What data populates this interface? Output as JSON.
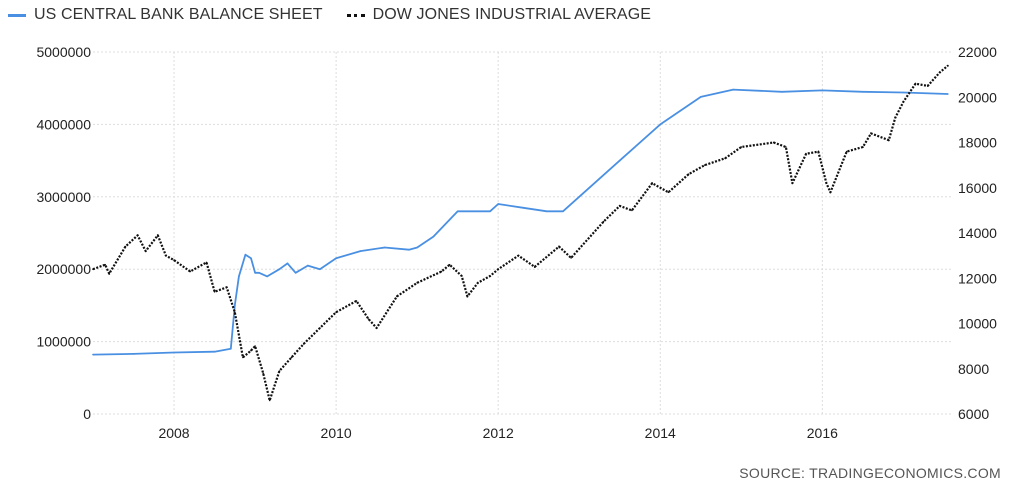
{
  "chart_data": {
    "type": "line",
    "title": "",
    "legend_position": "top-left",
    "grid": true,
    "series": [
      {
        "name": "US CENTRAL BANK BALANCE SHEET",
        "axis": "left",
        "color": "#4a90e2",
        "style": "solid",
        "points": [
          [
            2007.0,
            820000
          ],
          [
            2007.5,
            830000
          ],
          [
            2008.0,
            850000
          ],
          [
            2008.5,
            860000
          ],
          [
            2008.7,
            900000
          ],
          [
            2008.75,
            1500000
          ],
          [
            2008.8,
            1900000
          ],
          [
            2008.88,
            2200000
          ],
          [
            2008.95,
            2150000
          ],
          [
            2009.0,
            1950000
          ],
          [
            2009.05,
            1950000
          ],
          [
            2009.15,
            1900000
          ],
          [
            2009.3,
            2000000
          ],
          [
            2009.4,
            2080000
          ],
          [
            2009.5,
            1950000
          ],
          [
            2009.65,
            2050000
          ],
          [
            2009.8,
            2000000
          ],
          [
            2010.0,
            2150000
          ],
          [
            2010.3,
            2250000
          ],
          [
            2010.6,
            2300000
          ],
          [
            2010.9,
            2270000
          ],
          [
            2011.0,
            2300000
          ],
          [
            2011.2,
            2450000
          ],
          [
            2011.5,
            2800000
          ],
          [
            2011.9,
            2800000
          ],
          [
            2012.0,
            2900000
          ],
          [
            2012.3,
            2850000
          ],
          [
            2012.6,
            2800000
          ],
          [
            2012.8,
            2800000
          ],
          [
            2013.0,
            3000000
          ],
          [
            2013.5,
            3500000
          ],
          [
            2014.0,
            4000000
          ],
          [
            2014.5,
            4380000
          ],
          [
            2014.9,
            4480000
          ],
          [
            2015.5,
            4450000
          ],
          [
            2016.0,
            4470000
          ],
          [
            2016.5,
            4450000
          ],
          [
            2017.0,
            4440000
          ],
          [
            2017.55,
            4420000
          ]
        ]
      },
      {
        "name": "DOW JONES INDUSTRIAL AVERAGE",
        "axis": "right",
        "color": "#111111",
        "style": "dotted",
        "points": [
          [
            2007.0,
            12400
          ],
          [
            2007.15,
            12600
          ],
          [
            2007.2,
            12200
          ],
          [
            2007.4,
            13400
          ],
          [
            2007.55,
            13900
          ],
          [
            2007.65,
            13200
          ],
          [
            2007.8,
            13900
          ],
          [
            2007.9,
            13000
          ],
          [
            2008.0,
            12800
          ],
          [
            2008.2,
            12300
          ],
          [
            2008.4,
            12700
          ],
          [
            2008.5,
            11400
          ],
          [
            2008.65,
            11600
          ],
          [
            2008.75,
            10500
          ],
          [
            2008.85,
            8500
          ],
          [
            2008.95,
            8800
          ],
          [
            2009.0,
            9000
          ],
          [
            2009.1,
            7800
          ],
          [
            2009.18,
            6600
          ],
          [
            2009.3,
            7900
          ],
          [
            2009.45,
            8500
          ],
          [
            2009.6,
            9100
          ],
          [
            2009.8,
            9800
          ],
          [
            2010.0,
            10500
          ],
          [
            2010.25,
            11000
          ],
          [
            2010.4,
            10200
          ],
          [
            2010.5,
            9800
          ],
          [
            2010.75,
            11200
          ],
          [
            2011.0,
            11800
          ],
          [
            2011.3,
            12300
          ],
          [
            2011.4,
            12600
          ],
          [
            2011.55,
            12100
          ],
          [
            2011.62,
            11200
          ],
          [
            2011.75,
            11800
          ],
          [
            2011.9,
            12100
          ],
          [
            2012.0,
            12400
          ],
          [
            2012.25,
            13000
          ],
          [
            2012.45,
            12500
          ],
          [
            2012.75,
            13400
          ],
          [
            2012.9,
            12900
          ],
          [
            2013.0,
            13300
          ],
          [
            2013.3,
            14500
          ],
          [
            2013.5,
            15200
          ],
          [
            2013.65,
            15000
          ],
          [
            2013.9,
            16200
          ],
          [
            2014.1,
            15800
          ],
          [
            2014.35,
            16600
          ],
          [
            2014.55,
            17000
          ],
          [
            2014.8,
            17300
          ],
          [
            2015.0,
            17800
          ],
          [
            2015.4,
            18000
          ],
          [
            2015.55,
            17800
          ],
          [
            2015.63,
            16200
          ],
          [
            2015.8,
            17500
          ],
          [
            2015.95,
            17600
          ],
          [
            2016.05,
            16200
          ],
          [
            2016.1,
            15800
          ],
          [
            2016.3,
            17600
          ],
          [
            2016.5,
            17800
          ],
          [
            2016.6,
            18400
          ],
          [
            2016.82,
            18100
          ],
          [
            2016.9,
            19100
          ],
          [
            2017.0,
            19800
          ],
          [
            2017.15,
            20600
          ],
          [
            2017.3,
            20500
          ],
          [
            2017.45,
            21100
          ],
          [
            2017.55,
            21400
          ]
        ]
      }
    ],
    "x_ticks": [
      "2008",
      "2010",
      "2012",
      "2014",
      "2016"
    ],
    "x_tick_values": [
      2008,
      2010,
      2012,
      2014,
      2016
    ],
    "xlim": [
      2007.0,
      2017.6
    ],
    "ylim_left": [
      0,
      5000000
    ],
    "y_left_ticks": [
      "0",
      "1000000",
      "2000000",
      "3000000",
      "4000000",
      "5000000"
    ],
    "y_left_tick_values": [
      0,
      1000000,
      2000000,
      3000000,
      4000000,
      5000000
    ],
    "ylim_right": [
      6000,
      22000
    ],
    "y_right_ticks": [
      "6000",
      "8000",
      "10000",
      "12000",
      "14000",
      "16000",
      "18000",
      "20000",
      "22000"
    ],
    "y_right_tick_values": [
      6000,
      8000,
      10000,
      12000,
      14000,
      16000,
      18000,
      20000,
      22000
    ],
    "source": "SOURCE: TRADINGECONOMICS.COM"
  }
}
